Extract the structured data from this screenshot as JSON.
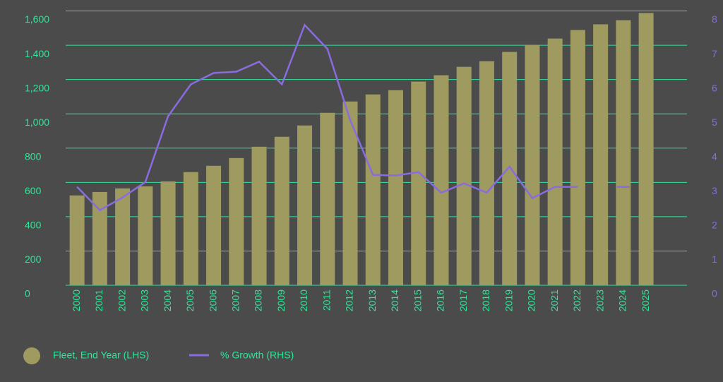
{
  "chart_data": {
    "type": "bar-line",
    "categories": [
      "2000",
      "2001",
      "2002",
      "2003",
      "2004",
      "2005",
      "2006",
      "2007",
      "2008",
      "2009",
      "2010",
      "2011",
      "2012",
      "2013",
      "2014",
      "2015",
      "2016",
      "2017",
      "2018",
      "2019",
      "2020",
      "2021",
      "2022",
      "2023",
      "2024",
      "2025"
    ],
    "series": [
      {
        "name": "Fleet, End Year (LHS)",
        "type": "bar",
        "color": "#9e9a60",
        "values": [
          524,
          544,
          565,
          577,
          606,
          660,
          697,
          742,
          808,
          866,
          932,
          1006,
          1072,
          1113,
          1138,
          1188,
          1225,
          1274,
          1307,
          1361,
          1402,
          1439,
          1489,
          1522,
          1546,
          1588
        ]
      },
      {
        "name": "% Growth (RHS)",
        "type": "line",
        "axis": "y2",
        "color": "#8a6be0",
        "values": [
          2.87,
          2.19,
          2.56,
          3.01,
          4.93,
          5.86,
          6.19,
          6.23,
          6.52,
          5.86,
          7.59,
          6.89,
          4.82,
          3.22,
          3.2,
          3.3,
          2.7,
          2.97,
          2.7,
          3.46,
          2.54,
          2.87,
          2.87,
          null,
          2.87,
          null
        ]
      }
    ],
    "ylim": [
      0,
      1600
    ],
    "yticks": [
      0,
      200,
      400,
      600,
      800,
      {
        "value": 1000,
        "label": "1,000"
      },
      {
        "value": 1200,
        "label": "1,200"
      },
      {
        "value": 1400,
        "label": "1,400"
      },
      {
        "value": 1600,
        "label": "1,600"
      }
    ],
    "y2lim": [
      0,
      8
    ],
    "y2ticks": [
      0,
      1,
      2,
      3,
      4,
      5,
      6,
      7,
      8
    ],
    "grid": true,
    "legend": "bottom-left"
  }
}
